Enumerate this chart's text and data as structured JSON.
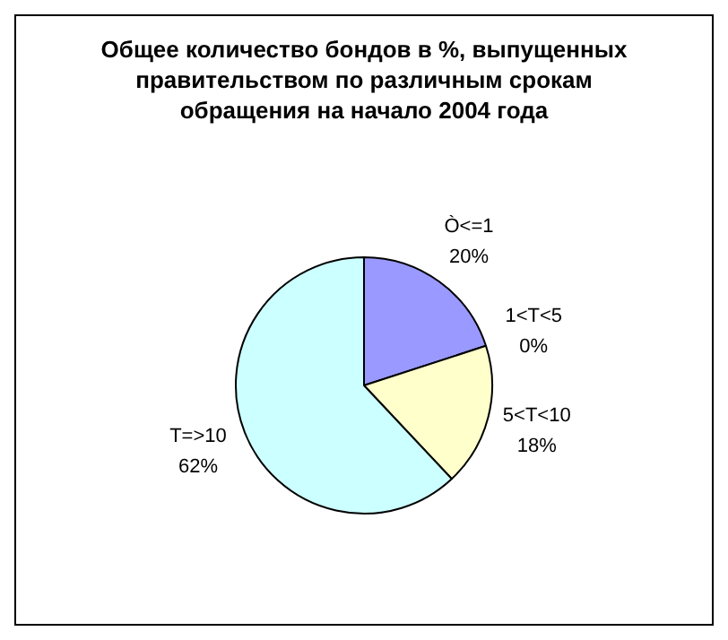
{
  "chart_data": {
    "type": "pie",
    "title": "Общее количество бондов в %, выпущенных правительством по различным срокам обращения на начало 2004 года",
    "categories": [
      "Ò<=1",
      "1<T<5",
      "5<T<10",
      "T=>10"
    ],
    "values": [
      20,
      0,
      18,
      62
    ],
    "value_labels": [
      "20%",
      "0%",
      "18%",
      "62%"
    ],
    "colors": [
      "#9999ff",
      "#993366",
      "#ffffcc",
      "#ccffff"
    ],
    "legend": false
  }
}
